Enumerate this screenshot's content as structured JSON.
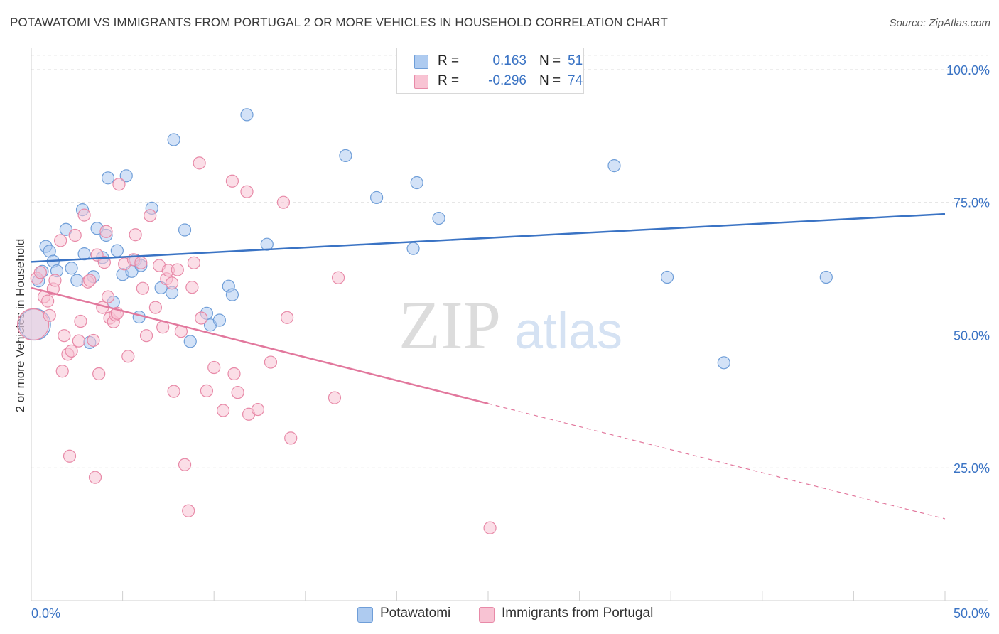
{
  "title": "POTAWATOMI VS IMMIGRANTS FROM PORTUGAL 2 OR MORE VEHICLES IN HOUSEHOLD CORRELATION CHART",
  "source": "Source: ZipAtlas.com",
  "watermark": {
    "zip": "ZIP",
    "atlas": "atlas"
  },
  "legend": [
    {
      "r_label": "R =",
      "r_value": "0.163",
      "n_label": "N =",
      "n_value": "51",
      "color": "#aecbf0",
      "border": "#6f9ed8"
    },
    {
      "r_label": "R =",
      "r_value": "-0.296",
      "n_label": "N =",
      "n_value": "74",
      "color": "#f8c3d3",
      "border": "#e88aa8"
    }
  ],
  "bottom_legend": [
    "Potawatomi",
    "Immigrants from Portugal"
  ],
  "chart_data": {
    "type": "scatter",
    "xlabel": "",
    "ylabel": "2 or more Vehicles in Household",
    "xlim": [
      0,
      50
    ],
    "ylim": [
      0,
      104
    ],
    "x_tick_labels": [
      "0.0%",
      "50.0%"
    ],
    "y_tick_labels": [
      {
        "value": 25,
        "label": "25.0%"
      },
      {
        "value": 50,
        "label": "50.0%"
      },
      {
        "value": 75,
        "label": "75.0%"
      },
      {
        "value": 100,
        "label": "100.0%"
      }
    ],
    "grid": true,
    "legend_position": "top-center",
    "series": [
      {
        "name": "Potawatomi",
        "color": "#6f9ed8",
        "fill": "#aecbf0",
        "trend": {
          "x": [
            0,
            50
          ],
          "y": [
            63.8,
            72.8
          ],
          "color": "#3a73c4"
        },
        "points": [
          [
            0.2,
            52
          ],
          [
            0.4,
            60.2
          ],
          [
            0.6,
            62
          ],
          [
            0.8,
            66.7
          ],
          [
            1.0,
            65.8
          ],
          [
            1.2,
            63.9
          ],
          [
            1.4,
            62.1
          ],
          [
            1.9,
            69.9
          ],
          [
            2.2,
            62.6
          ],
          [
            2.5,
            60.3
          ],
          [
            2.8,
            73.6
          ],
          [
            2.9,
            65.3
          ],
          [
            3.2,
            48.6
          ],
          [
            3.4,
            61.0
          ],
          [
            3.6,
            70.1
          ],
          [
            3.9,
            64.6
          ],
          [
            4.1,
            68.8
          ],
          [
            4.2,
            79.6
          ],
          [
            4.5,
            56.2
          ],
          [
            4.7,
            65.9
          ],
          [
            5.0,
            61.4
          ],
          [
            5.2,
            80
          ],
          [
            5.5,
            62.0
          ],
          [
            5.7,
            64.1
          ],
          [
            5.9,
            53.4
          ],
          [
            6.0,
            63.1
          ],
          [
            6.6,
            73.9
          ],
          [
            7.1,
            58.9
          ],
          [
            7.7,
            58.0
          ],
          [
            7.8,
            86.8
          ],
          [
            8.4,
            69.8
          ],
          [
            8.7,
            48.8
          ],
          [
            9.6,
            54.1
          ],
          [
            9.8,
            51.9
          ],
          [
            10.3,
            52.8
          ],
          [
            10.8,
            59.2
          ],
          [
            11.0,
            57.6
          ],
          [
            11.8,
            91.5
          ],
          [
            12.9,
            67.1
          ],
          [
            17.2,
            83.8
          ],
          [
            18.9,
            75.9
          ],
          [
            20.9,
            66.3
          ],
          [
            21.1,
            78.7
          ],
          [
            22.3,
            72.0
          ],
          [
            25.2,
            100
          ],
          [
            31.9,
            81.9
          ],
          [
            34.8,
            60.9
          ],
          [
            37.9,
            44.8
          ],
          [
            43.5,
            60.9
          ]
        ]
      },
      {
        "name": "Immigrants from Portugal",
        "color": "#e88aa8",
        "fill": "#f8c3d3",
        "trend": {
          "x": [
            0,
            25
          ],
          "y": [
            58.9,
            37.1
          ],
          "color": "#e2789d",
          "dash_to": {
            "x": 50,
            "y": 15.4
          }
        },
        "points": [
          [
            0.1,
            52
          ],
          [
            0.3,
            60.7
          ],
          [
            0.5,
            61.8
          ],
          [
            0.7,
            57.2
          ],
          [
            0.9,
            56.4
          ],
          [
            1.0,
            53.7
          ],
          [
            1.2,
            58.7
          ],
          [
            1.3,
            60.3
          ],
          [
            1.6,
            67.8
          ],
          [
            1.7,
            43.2
          ],
          [
            1.8,
            49.9
          ],
          [
            2.0,
            46.4
          ],
          [
            2.1,
            27.2
          ],
          [
            2.2,
            47.0
          ],
          [
            2.4,
            68.8
          ],
          [
            2.6,
            48.9
          ],
          [
            2.7,
            52.6
          ],
          [
            2.9,
            72.6
          ],
          [
            3.1,
            60.0
          ],
          [
            3.2,
            60.3
          ],
          [
            3.4,
            49.0
          ],
          [
            3.5,
            23.2
          ],
          [
            3.6,
            65.1
          ],
          [
            3.7,
            42.7
          ],
          [
            3.9,
            55.2
          ],
          [
            4.0,
            63.7
          ],
          [
            4.1,
            69.5
          ],
          [
            4.2,
            57.2
          ],
          [
            4.3,
            53.2
          ],
          [
            4.5,
            52.5
          ],
          [
            4.6,
            53.8
          ],
          [
            4.7,
            54.1
          ],
          [
            4.8,
            78.4
          ],
          [
            5.1,
            63.4
          ],
          [
            5.3,
            46.0
          ],
          [
            5.6,
            64.2
          ],
          [
            5.7,
            68.9
          ],
          [
            6.0,
            63.6
          ],
          [
            6.1,
            58.8
          ],
          [
            6.3,
            49.9
          ],
          [
            6.5,
            72.5
          ],
          [
            6.8,
            55.2
          ],
          [
            7.0,
            63.1
          ],
          [
            7.2,
            51.5
          ],
          [
            7.4,
            60.6
          ],
          [
            7.5,
            62.2
          ],
          [
            7.7,
            59.8
          ],
          [
            7.8,
            39.4
          ],
          [
            8.0,
            62.3
          ],
          [
            8.2,
            50.7
          ],
          [
            8.4,
            25.6
          ],
          [
            8.6,
            16.9
          ],
          [
            8.8,
            59.0
          ],
          [
            8.9,
            63.6
          ],
          [
            9.2,
            82.4
          ],
          [
            9.3,
            53.2
          ],
          [
            9.6,
            39.5
          ],
          [
            10.0,
            43.9
          ],
          [
            10.5,
            35.8
          ],
          [
            11.0,
            79.0
          ],
          [
            11.1,
            42.7
          ],
          [
            11.3,
            39.2
          ],
          [
            11.8,
            77.0
          ],
          [
            11.9,
            35.1
          ],
          [
            12.4,
            36.0
          ],
          [
            13.1,
            44.9
          ],
          [
            13.8,
            75.0
          ],
          [
            14.0,
            53.3
          ],
          [
            14.2,
            30.6
          ],
          [
            16.6,
            38.2
          ],
          [
            16.8,
            60.8
          ],
          [
            25.1,
            13.7
          ]
        ]
      }
    ]
  }
}
